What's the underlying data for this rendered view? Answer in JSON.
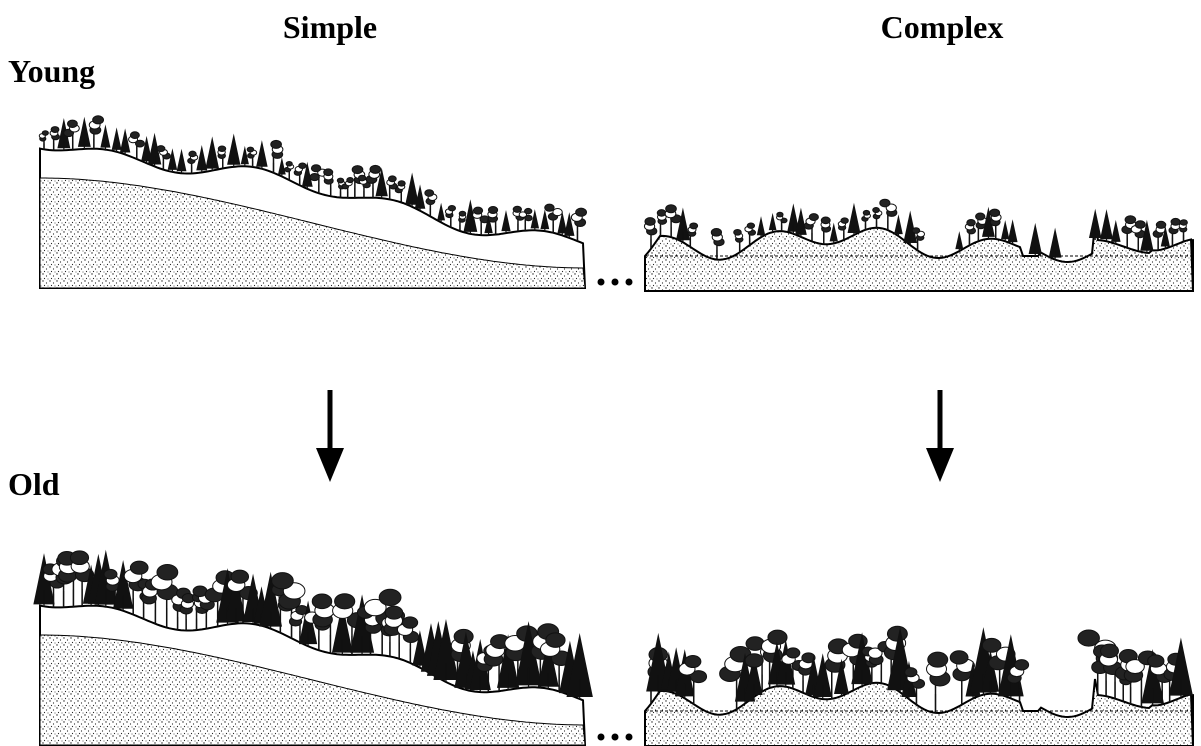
{
  "columns": [
    "Simple",
    "Complex"
  ],
  "rows": [
    "Young",
    "Old"
  ]
}
